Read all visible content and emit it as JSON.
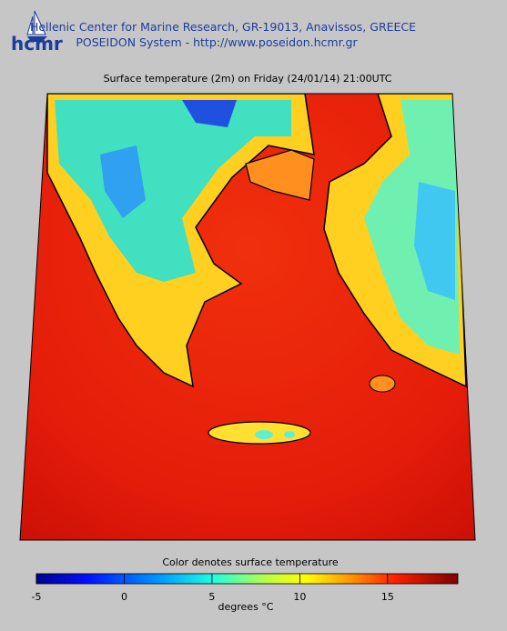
{
  "header": {
    "organization": "Hellenic Center for Marine Research, GR-19013, Anavissos, GREECE",
    "system": "POSEIDON System - http://www.poseidon.hcmr.gr",
    "logo": "hcmr"
  },
  "map": {
    "title": "Surface temperature (2m) on Friday (24/01/14) 21:00UTC"
  },
  "colorbar": {
    "title": "Color denotes surface temperature",
    "label": "degrees °C",
    "lim": [
      -5,
      19
    ],
    "ticks": [
      -5,
      0,
      5,
      10,
      15
    ]
  }
}
